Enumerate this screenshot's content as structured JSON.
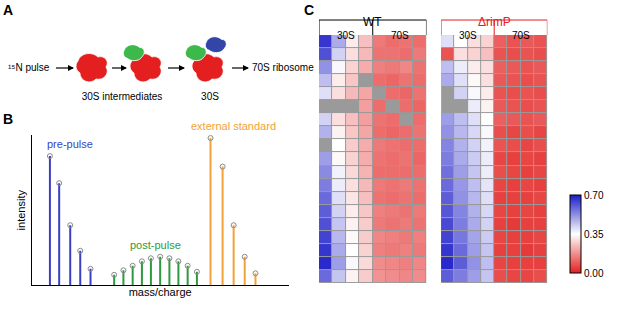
{
  "diagram": {
    "panel_labels": [
      "A",
      "B",
      "C"
    ],
    "steps": [
      {
        "label": "¹⁵N pulse"
      },
      {
        "label": "30S intermediates"
      },
      {
        "label": "30S"
      },
      {
        "label": "70S ribosome"
      }
    ]
  },
  "chart_data": [
    {
      "type": "stem",
      "x_label": "mass/charge",
      "y_label": "intensity",
      "xlim": [
        0,
        100
      ],
      "ylim": [
        0,
        100
      ],
      "xticks": [],
      "yticks": [],
      "tick_labels": false,
      "marker": "open circle",
      "series": [
        {
          "name": "pre-pulse",
          "color": "#3b3fc4",
          "x": [
            7.1,
            10.7,
            15.0,
            18.9,
            22.9
          ],
          "values": [
            86,
            68,
            40,
            23,
            11
          ]
        },
        {
          "name": "post-pulse",
          "color": "#2e9a3e",
          "x": [
            32.1,
            35.7,
            39.3,
            42.9,
            46.4,
            50.0,
            53.6,
            57.1,
            60.7,
            64.3
          ],
          "values": [
            7,
            10,
            13,
            16,
            18,
            19,
            18,
            16,
            13,
            9
          ]
        },
        {
          "name": "external standard",
          "color": "#f2a23a",
          "x": [
            69.6,
            74.3,
            78.6,
            82.9,
            87.1
          ],
          "values": [
            98,
            79,
            40,
            19,
            8
          ]
        }
      ]
    },
    {
      "type": "heatmap",
      "tick_labels": false,
      "color_bar": {
        "range": [
          0,
          0.7
        ],
        "ticks": [
          {
            "value": 0,
            "label": "0.00"
          },
          {
            "value": 0.35,
            "label": "0.35"
          },
          {
            "value": 0.7,
            "label": "0.70"
          }
        ],
        "colors": [
          "#e3201f",
          "#ffffff",
          "#1c1cc9"
        ]
      },
      "panels": [
        {
          "title": "WT",
          "color": "#000000",
          "groups": [
            {
              "label": "30S",
              "columns": 4
            },
            {
              "label": "70S",
              "columns": 4
            }
          ],
          "cells": [
            [
              0.66,
              0.48,
              0.32,
              0.25,
              0.14,
              0.12,
              0.13,
              0.12
            ],
            [
              0.62,
              0.42,
              0.3,
              0.24,
              0.13,
              0.13,
              0.12,
              0.14
            ],
            [
              0.52,
              0.36,
              0.28,
              0.22,
              0.15,
              0.14,
              0.16,
              0.13
            ],
            [
              0.45,
              0.32,
              0.26,
              null,
              0.12,
              0.11,
              0.13,
              0.12
            ],
            [
              0.4,
              0.3,
              0.24,
              0.21,
              null,
              0.12,
              0.11,
              0.13
            ],
            [
              null,
              null,
              null,
              0.2,
              0.12,
              null,
              0.12,
              0.11
            ],
            [
              0.42,
              0.3,
              0.25,
              0.2,
              0.13,
              0.12,
              null,
              0.12
            ],
            [
              0.47,
              0.33,
              0.26,
              0.21,
              0.12,
              0.11,
              0.12,
              0.13
            ],
            [
              null,
              0.35,
              0.27,
              0.22,
              0.14,
              0.13,
              0.12,
              0.12
            ],
            [
              0.5,
              0.34,
              0.28,
              0.22,
              0.13,
              0.12,
              0.13,
              0.11
            ],
            [
              0.53,
              0.37,
              0.29,
              0.23,
              0.12,
              0.12,
              0.12,
              0.12
            ],
            [
              0.55,
              0.38,
              0.3,
              0.24,
              0.14,
              0.13,
              0.14,
              0.13
            ],
            [
              0.58,
              0.4,
              0.31,
              0.25,
              0.13,
              0.12,
              0.13,
              0.12
            ],
            [
              0.6,
              0.42,
              0.32,
              0.26,
              0.15,
              0.14,
              0.13,
              0.14
            ],
            [
              0.62,
              0.44,
              0.33,
              0.27,
              0.14,
              0.13,
              0.14,
              0.13
            ],
            [
              0.64,
              0.46,
              0.34,
              0.27,
              0.16,
              0.15,
              0.14,
              0.15
            ],
            [
              0.66,
              0.48,
              0.35,
              0.28,
              0.15,
              0.14,
              0.15,
              0.14
            ],
            [
              0.68,
              0.5,
              0.36,
              0.29,
              0.17,
              0.16,
              0.15,
              0.16
            ],
            [
              0.58,
              0.44,
              0.33,
              0.27,
              0.18,
              0.17,
              0.16,
              0.17
            ]
          ]
        },
        {
          "title": "ΔrimP",
          "color": "#e3201f",
          "groups": [
            {
              "label": "30S",
              "columns": 4
            },
            {
              "label": "70S",
              "columns": 4
            }
          ],
          "cells": [
            [
              0.4,
              0.35,
              0.3,
              0.28,
              0.1,
              0.08,
              0.09,
              0.08
            ],
            [
              0.08,
              0.3,
              0.28,
              0.25,
              0.08,
              0.07,
              0.08,
              0.07
            ],
            [
              0.45,
              0.38,
              0.32,
              0.3,
              0.1,
              0.09,
              0.08,
              0.09
            ],
            [
              0.48,
              0.4,
              0.34,
              0.3,
              0.09,
              0.08,
              0.07,
              0.08
            ],
            [
              null,
              0.42,
              0.36,
              0.32,
              0.08,
              0.07,
              0.08,
              0.07
            ],
            [
              null,
              null,
              0.38,
              0.33,
              0.09,
              0.08,
              0.07,
              0.08
            ],
            [
              0.5,
              0.45,
              0.4,
              0.35,
              0.1,
              0.09,
              0.08,
              0.09
            ],
            [
              0.52,
              0.46,
              0.41,
              0.36,
              0.07,
              0.06,
              0.07,
              0.06
            ],
            [
              0.54,
              0.47,
              0.42,
              0.37,
              0.08,
              0.07,
              0.06,
              0.07
            ],
            [
              0.55,
              0.48,
              0.43,
              0.38,
              0.06,
              0.05,
              0.06,
              0.05
            ],
            [
              0.57,
              0.5,
              0.44,
              0.38,
              0.07,
              0.06,
              0.05,
              0.06
            ],
            [
              0.58,
              0.51,
              0.45,
              0.39,
              0.06,
              0.05,
              0.06,
              0.05
            ],
            [
              0.6,
              0.52,
              0.46,
              0.4,
              0.05,
              0.05,
              0.05,
              0.06
            ],
            [
              0.61,
              0.54,
              0.47,
              0.41,
              0.06,
              0.05,
              0.06,
              0.05
            ],
            [
              0.63,
              0.55,
              0.48,
              0.42,
              0.05,
              0.04,
              0.05,
              0.05
            ],
            [
              0.64,
              0.56,
              0.49,
              0.43,
              0.06,
              0.05,
              0.05,
              0.06
            ],
            [
              0.66,
              0.58,
              0.5,
              0.44,
              0.05,
              0.05,
              0.04,
              0.05
            ],
            [
              0.68,
              0.6,
              0.52,
              0.45,
              0.06,
              0.05,
              0.05,
              0.05
            ],
            [
              0.6,
              0.55,
              0.5,
              0.44,
              0.07,
              0.06,
              0.06,
              0.07
            ]
          ]
        }
      ]
    }
  ]
}
